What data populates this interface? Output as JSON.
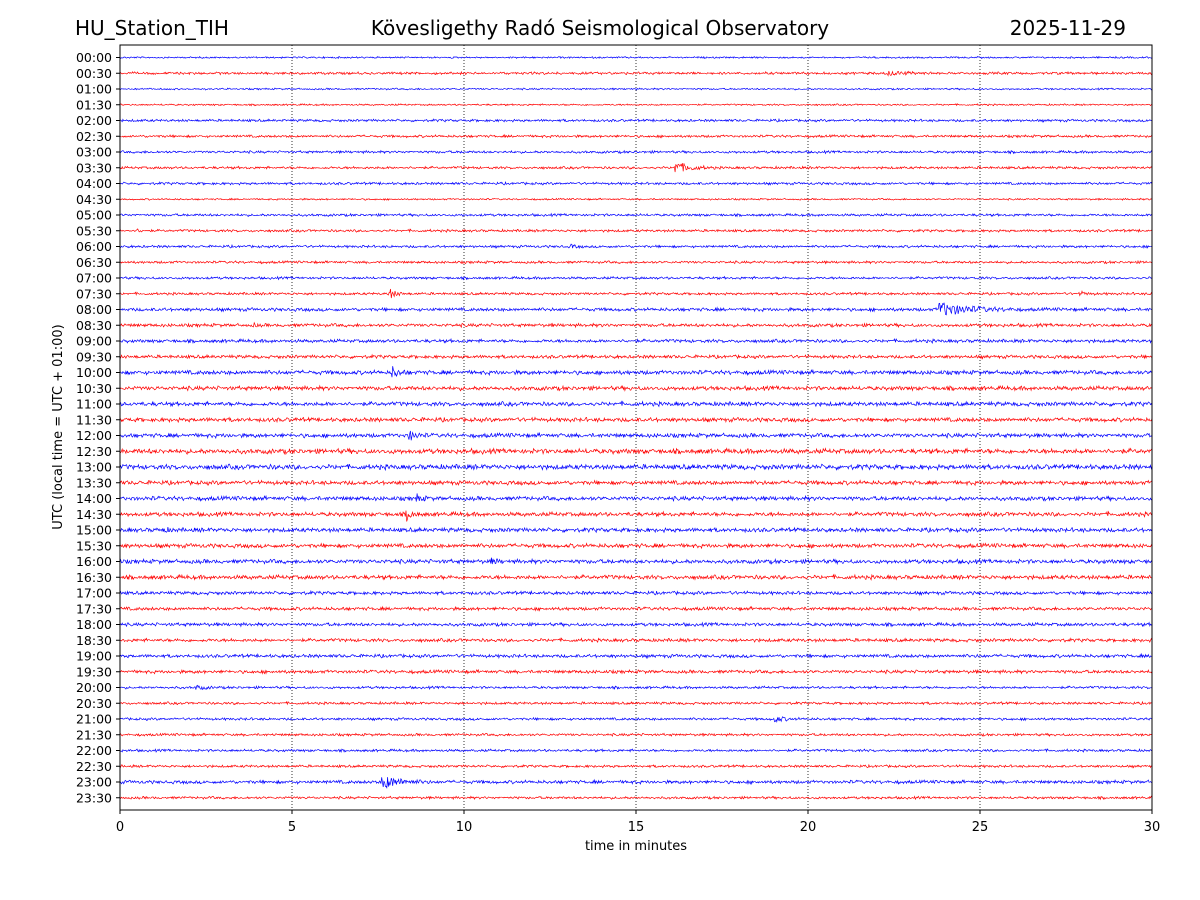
{
  "chart_data": {
    "type": "line",
    "title_left": "HU_Station_TIH",
    "title_center": "Kövesligethy Radó Seismological Observatory",
    "title_right": "2025-11-29",
    "xlabel": "time in minutes",
    "ylabel": "UTC (local time = UTC + 01:00)",
    "xlim": [
      0,
      30
    ],
    "xticks": [
      "0",
      "5",
      "10",
      "15",
      "20",
      "25",
      "30"
    ],
    "grid": "vertical dotted",
    "trace_colors": [
      "#0000ff",
      "#ff0000"
    ],
    "rows": [
      "00:00",
      "00:30",
      "01:00",
      "01:30",
      "02:00",
      "02:30",
      "03:00",
      "03:30",
      "04:00",
      "04:30",
      "05:00",
      "05:30",
      "06:00",
      "06:30",
      "07:00",
      "07:30",
      "08:00",
      "08:30",
      "09:00",
      "09:30",
      "10:00",
      "10:30",
      "11:00",
      "11:30",
      "12:00",
      "12:30",
      "13:00",
      "13:30",
      "14:00",
      "14:30",
      "15:00",
      "15:30",
      "16:00",
      "16:30",
      "17:00",
      "17:30",
      "18:00",
      "18:30",
      "19:00",
      "19:30",
      "20:00",
      "20:30",
      "21:00",
      "21:30",
      "22:00",
      "22:30",
      "23:00",
      "23:30"
    ],
    "noise": [
      1,
      1.5,
      1,
      1,
      1.5,
      1.5,
      1.5,
      1.5,
      1.5,
      1,
      1.5,
      1.5,
      1.5,
      1.5,
      1.5,
      1.5,
      2,
      2,
      2,
      2,
      2.5,
      2.5,
      2.5,
      2.5,
      2.5,
      3,
      3,
      2.5,
      2.5,
      2.5,
      2.5,
      2.5,
      2.5,
      2.5,
      2,
      2,
      2,
      2,
      2,
      2,
      1.5,
      1.5,
      1.5,
      1.5,
      1.5,
      1.5,
      2,
      1.5
    ],
    "events": [
      {
        "row": 1,
        "t": 22.3,
        "amp": 2,
        "dur": 1.5
      },
      {
        "row": 7,
        "t": 16.1,
        "amp": 6,
        "dur": 1.2
      },
      {
        "row": 11,
        "t": 0.5,
        "amp": 2,
        "dur": 0.3
      },
      {
        "row": 12,
        "t": 13.1,
        "amp": 2,
        "dur": 0.4
      },
      {
        "row": 15,
        "t": 7.8,
        "amp": 6,
        "dur": 0.5
      },
      {
        "row": 15,
        "t": 27.9,
        "amp": 2,
        "dur": 0.5
      },
      {
        "row": 16,
        "t": 23.8,
        "amp": 7,
        "dur": 2.3
      },
      {
        "row": 17,
        "t": 3.9,
        "amp": 2,
        "dur": 0.2
      },
      {
        "row": 20,
        "t": 7.9,
        "amp": 6,
        "dur": 0.5
      },
      {
        "row": 24,
        "t": 8.4,
        "amp": 5,
        "dur": 0.5
      },
      {
        "row": 28,
        "t": 8.6,
        "amp": 4,
        "dur": 0.4
      },
      {
        "row": 29,
        "t": 8.3,
        "amp": 7,
        "dur": 0.4
      },
      {
        "row": 30,
        "t": 1.2,
        "amp": 2,
        "dur": 0.5
      },
      {
        "row": 32,
        "t": 10.8,
        "amp": 3,
        "dur": 0.4
      },
      {
        "row": 40,
        "t": 2.2,
        "amp": 2,
        "dur": 0.7
      },
      {
        "row": 42,
        "t": 19.0,
        "amp": 3,
        "dur": 0.8
      },
      {
        "row": 46,
        "t": 7.6,
        "amp": 7,
        "dur": 1.4
      }
    ]
  }
}
